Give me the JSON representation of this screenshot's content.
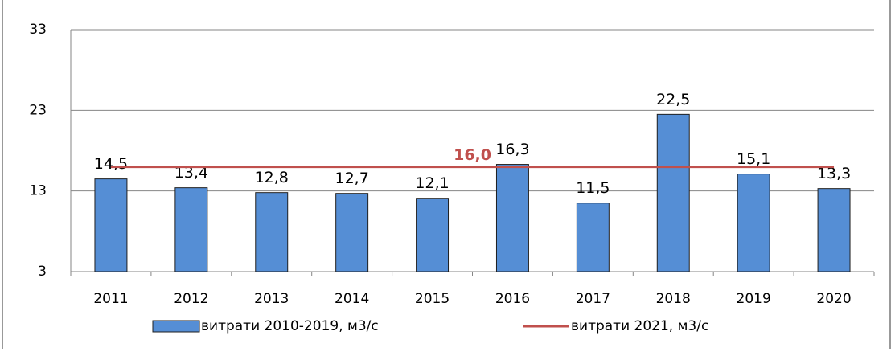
{
  "chart_data": {
    "type": "bar",
    "categories": [
      "2011",
      "2012",
      "2013",
      "2014",
      "2015",
      "2016",
      "2017",
      "2018",
      "2019",
      "2020"
    ],
    "series": [
      {
        "name": "витрати 2010-2019, м3/с",
        "type": "bar",
        "color": "#558ed5",
        "values": [
          14.5,
          13.4,
          12.8,
          12.7,
          12.1,
          16.3,
          11.5,
          22.5,
          15.1,
          13.3
        ],
        "value_labels": [
          "14,5",
          "13,4",
          "12,8",
          "12,7",
          "12,1",
          "16,3",
          "11,5",
          "22,5",
          "15,1",
          "13,3"
        ]
      },
      {
        "name": "витрати 2021, м3/с",
        "type": "line",
        "color": "#c0504d",
        "values": [
          16,
          16,
          16,
          16,
          16,
          16,
          16,
          16,
          16,
          16
        ],
        "value_labels": [
          null,
          null,
          null,
          null,
          "16,0",
          null,
          null,
          null,
          null,
          null
        ]
      }
    ],
    "ylim": [
      3,
      33
    ],
    "yticks": [
      3,
      13,
      23,
      33
    ],
    "grid": true,
    "legend": "bottom"
  }
}
